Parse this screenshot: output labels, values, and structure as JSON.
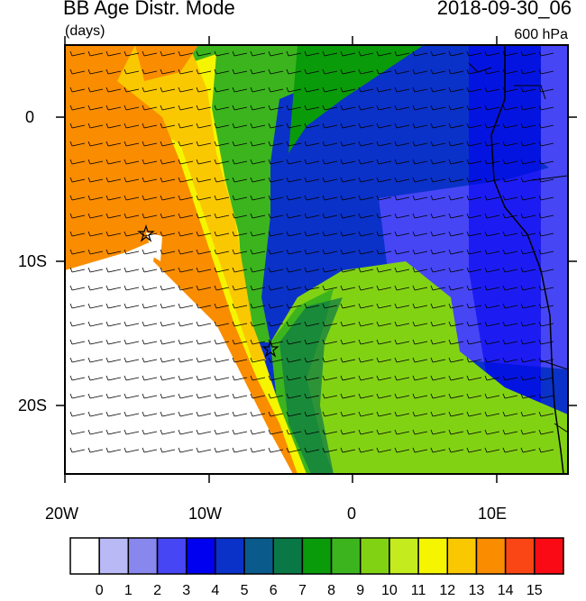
{
  "header": {
    "title": "BB Age Distr. Mode",
    "units": "(days)",
    "datetime": "2018-09-30_06",
    "level": "600 hPa"
  },
  "axes": {
    "lat_labels": [
      "0",
      "10S",
      "20S"
    ],
    "lon_labels": [
      "20W",
      "10W",
      "0",
      "10E"
    ]
  },
  "colorbar": {
    "labels": [
      "0",
      "1",
      "2",
      "3",
      "4",
      "5",
      "6",
      "7",
      "8",
      "9",
      "10",
      "11",
      "12",
      "13",
      "14",
      "15"
    ],
    "colors": [
      "#ffffff",
      "#b9b9f5",
      "#8787ee",
      "#4646f5",
      "#0000f0",
      "#0a32c8",
      "#0a5a8c",
      "#0a7846",
      "#0a9b0a",
      "#3cb41e",
      "#82d214",
      "#c3eb1e",
      "#f5f500",
      "#fac800",
      "#fa8c00",
      "#fa4614",
      "#fa0a14"
    ]
  },
  "markers": [
    "star-marker",
    "star-marker"
  ]
}
